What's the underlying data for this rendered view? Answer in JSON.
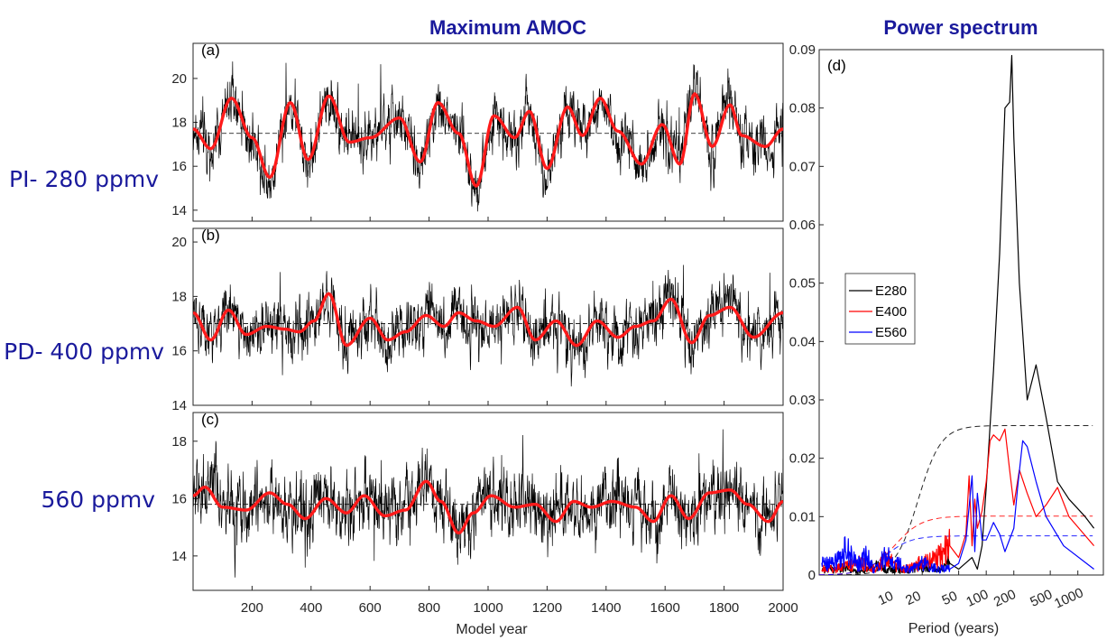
{
  "titles": {
    "left": "Maximum AMOC",
    "right": "Power spectrum"
  },
  "row_labels": [
    "PI- 280 ppmv",
    "PD- 400 ppmv",
    "560 ppmv"
  ],
  "colors": {
    "raw": "#000000",
    "smooth": "#ff1a1a",
    "title": "#1a1a9c",
    "e280": "#000000",
    "e400": "#ff0000",
    "e560": "#0000ff"
  },
  "chart_data": [
    {
      "type": "line",
      "panel": "(a)",
      "xlim": [
        0,
        2000
      ],
      "ylim": [
        13.5,
        21.6
      ],
      "yticks": [
        14,
        16,
        18,
        20
      ],
      "mean": 17.5,
      "noise_sd": 0.9,
      "smooth": {
        "x": [
          0,
          60,
          130,
          200,
          260,
          330,
          390,
          460,
          530,
          600,
          700,
          770,
          830,
          900,
          960,
          1020,
          1090,
          1140,
          1200,
          1270,
          1320,
          1380,
          1440,
          1520,
          1590,
          1650,
          1700,
          1760,
          1820,
          1860,
          1940,
          2000
        ],
        "y": [
          17.7,
          16.8,
          19.1,
          17.3,
          15.5,
          18.9,
          16.3,
          19.2,
          17.1,
          17.3,
          18.2,
          16.2,
          18.9,
          17.5,
          15.1,
          18.3,
          17.3,
          18.5,
          15.9,
          18.7,
          17.4,
          19.1,
          17.6,
          16.1,
          17.9,
          16.1,
          19.3,
          16.9,
          18.8,
          17.4,
          16.9,
          17.7
        ]
      }
    },
    {
      "type": "line",
      "panel": "(b)",
      "xlim": [
        0,
        2000
      ],
      "xticks": [
        200,
        400,
        600,
        800,
        1000,
        1200,
        1400,
        1600,
        1800,
        2000
      ],
      "ylim": [
        14,
        20.5
      ],
      "yticks": [
        14,
        16,
        18,
        20
      ],
      "mean": 17.0,
      "noise_sd": 0.75,
      "smooth": {
        "x": [
          0,
          60,
          120,
          180,
          250,
          310,
          360,
          410,
          460,
          520,
          600,
          660,
          720,
          790,
          850,
          900,
          960,
          1020,
          1100,
          1160,
          1230,
          1300,
          1370,
          1440,
          1500,
          1560,
          1620,
          1690,
          1750,
          1820,
          1900,
          2000
        ],
        "y": [
          17.4,
          16.4,
          17.5,
          16.6,
          16.9,
          16.8,
          16.7,
          17.1,
          18.1,
          16.2,
          17.2,
          16.4,
          16.7,
          17.3,
          16.9,
          17.4,
          17.1,
          16.9,
          17.6,
          16.4,
          17.1,
          16.2,
          17.1,
          16.5,
          16.9,
          17.1,
          17.9,
          16.3,
          17.3,
          17.6,
          16.5,
          17.4
        ]
      }
    },
    {
      "type": "line",
      "panel": "(c)",
      "xlim": [
        0,
        2000
      ],
      "xticks": [
        200,
        400,
        600,
        800,
        1000,
        1200,
        1400,
        1600,
        1800,
        2000
      ],
      "xlabel": "Model year",
      "ylim": [
        12.8,
        19
      ],
      "yticks": [
        14,
        16,
        18
      ],
      "mean": 15.8,
      "noise_sd": 0.85,
      "smooth": {
        "x": [
          0,
          40,
          100,
          180,
          260,
          320,
          380,
          450,
          520,
          580,
          650,
          720,
          790,
          840,
          900,
          950,
          1010,
          1090,
          1160,
          1230,
          1290,
          1350,
          1420,
          1500,
          1560,
          1620,
          1680,
          1750,
          1820,
          1880,
          1950,
          2000
        ],
        "y": [
          16.1,
          16.4,
          15.7,
          15.6,
          16.2,
          15.8,
          15.3,
          16.0,
          15.5,
          16.1,
          15.4,
          15.6,
          16.6,
          15.9,
          14.8,
          15.5,
          16.1,
          15.7,
          15.8,
          15.2,
          15.9,
          15.7,
          15.9,
          15.7,
          15.2,
          16.1,
          15.3,
          16.2,
          16.3,
          15.8,
          15.2,
          15.9
        ]
      }
    },
    {
      "type": "line",
      "panel": "(d)",
      "xlabel": "Period (years)",
      "xticks": [
        10,
        20,
        50,
        100,
        200,
        500,
        1000
      ],
      "ylim": [
        0,
        0.09
      ],
      "yticks": [
        0,
        0.01,
        0.02,
        0.03,
        0.04,
        0.05,
        0.06,
        0.07,
        0.08,
        0.09
      ],
      "legend": [
        "E280",
        "E400",
        "E560"
      ],
      "legend_position": "middle-left",
      "series": [
        {
          "name": "E280",
          "period": [
            2,
            3,
            4,
            6,
            8,
            12,
            20,
            30,
            40,
            50,
            70,
            80,
            90,
            100,
            120,
            140,
            160,
            180,
            190,
            200,
            230,
            280,
            350,
            450,
            600,
            800,
            1200,
            1500
          ],
          "values": [
            0.001,
            0.0012,
            0.0005,
            0.0015,
            0.001,
            0.0008,
            0.0015,
            0.001,
            0.002,
            0.001,
            0.003,
            0.001,
            0.005,
            0.015,
            0.035,
            0.055,
            0.08,
            0.081,
            0.089,
            0.075,
            0.05,
            0.03,
            0.036,
            0.027,
            0.016,
            0.013,
            0.01,
            0.008
          ]
        },
        {
          "name": "E400",
          "period": [
            2,
            3,
            4,
            6,
            8,
            12,
            20,
            30,
            40,
            50,
            60,
            65,
            70,
            75,
            80,
            90,
            100,
            110,
            120,
            140,
            160,
            180,
            200,
            230,
            280,
            350,
            450,
            600,
            800,
            1500
          ],
          "values": [
            0.001,
            0.0015,
            0.002,
            0.001,
            0.0025,
            0.001,
            0.002,
            0.003,
            0.005,
            0.003,
            0.007,
            0.017,
            0.005,
            0.013,
            0.008,
            0.011,
            0.016,
            0.023,
            0.024,
            0.023,
            0.025,
            0.018,
            0.012,
            0.018,
            0.014,
            0.01,
            0.012,
            0.015,
            0.01,
            0.005
          ]
        },
        {
          "name": "E560",
          "period": [
            2,
            3,
            4,
            5,
            6,
            8,
            10,
            15,
            20,
            30,
            40,
            50,
            60,
            70,
            75,
            80,
            90,
            100,
            120,
            140,
            160,
            200,
            220,
            250,
            280,
            350,
            450,
            700,
            1500
          ],
          "values": [
            0.002,
            0.004,
            0.002,
            0.003,
            0.001,
            0.003,
            0.002,
            0.001,
            0.002,
            0.001,
            0.001,
            0.002,
            0.006,
            0.017,
            0.004,
            0.014,
            0.006,
            0.006,
            0.009,
            0.007,
            0.004,
            0.008,
            0.015,
            0.023,
            0.022,
            0.016,
            0.01,
            0.005,
            0.001
          ]
        }
      ],
      "significance": [
        {
          "name": "E280",
          "level_high": 0.0256,
          "mid_period": 18,
          "width": 1.1
        },
        {
          "name": "E400",
          "level_high": 0.0101,
          "mid_period": 10,
          "width": 1.3
        },
        {
          "name": "E560",
          "level_high": 0.0067,
          "mid_period": 8,
          "width": 1.2
        }
      ]
    }
  ]
}
